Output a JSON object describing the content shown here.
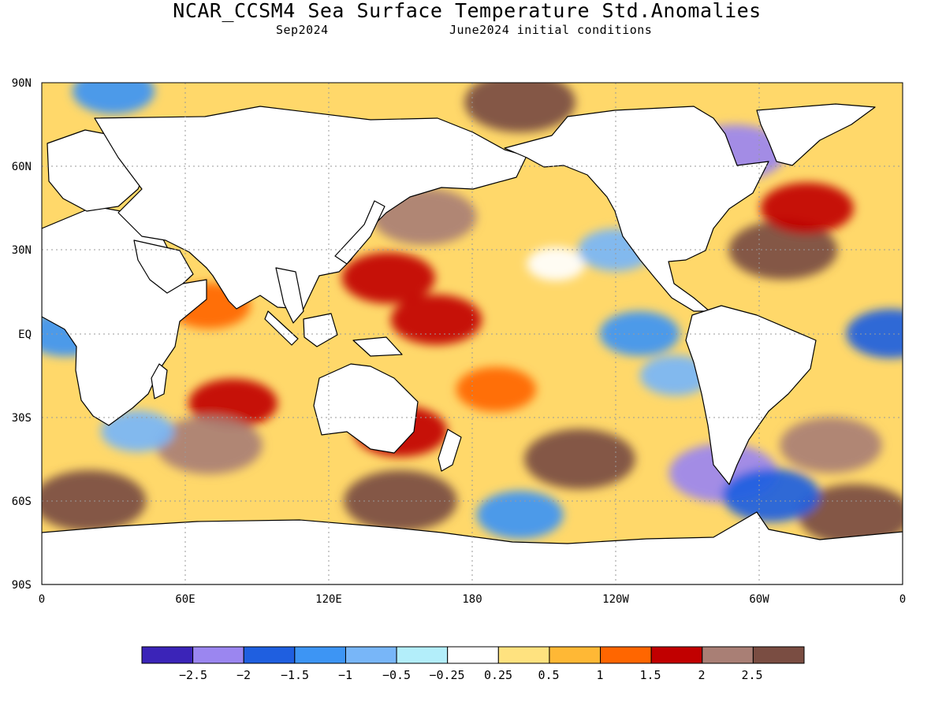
{
  "header": {
    "title": "NCAR_CCSM4 Sea Surface Temperature Std.Anomalies",
    "valid_month": "Sep2024",
    "init_label": "June2024 initial conditions"
  },
  "map": {
    "lat_labels": [
      "90N",
      "60N",
      "30N",
      "EQ",
      "30S",
      "60S",
      "90S"
    ],
    "lon_labels": [
      "0",
      "60E",
      "120E",
      "180",
      "120W",
      "60W",
      "0"
    ],
    "gridlines": true,
    "projection": "equirectangular",
    "extent": {
      "lon": [
        0,
        360
      ],
      "lat": [
        -90,
        90
      ]
    },
    "ocean_fill": "anomaly contours",
    "land_color": "#ffffff"
  },
  "colorbar": {
    "colors": [
      "#3b24b8",
      "#9b86f0",
      "#1f5fe0",
      "#3d95f4",
      "#78b6f8",
      "#b3eefa",
      "#ffffff",
      "#ffe27f",
      "#ffb835",
      "#ff6600",
      "#c10000",
      "#a97f75",
      "#7a4d42"
    ],
    "labels": [
      "−2.5",
      "−2",
      "−1.5",
      "−1",
      "−0.5",
      "−0.25",
      "0.25",
      "0.5",
      "1",
      "1.5",
      "2",
      "2.5"
    ]
  },
  "chart_data": {
    "type": "heatmap",
    "title": "NCAR_CCSM4 Sea Surface Temperature Std.Anomalies",
    "subtitle": "Sep2024   June2024 initial conditions",
    "x_ticks": [
      "0",
      "60E",
      "120E",
      "180",
      "120W",
      "60W",
      "0"
    ],
    "y_ticks": [
      "90N",
      "60N",
      "30N",
      "EQ",
      "30S",
      "60S",
      "90S"
    ],
    "legend_thresholds": [
      -2.5,
      -2,
      -1.5,
      -1,
      -0.5,
      -0.25,
      0.25,
      0.5,
      1,
      1.5,
      2,
      2.5
    ],
    "legend_placement": "bottom",
    "regions": [
      {
        "lon": 160,
        "lat": 42,
        "value": 2.3
      },
      {
        "lon": 200,
        "lat": 83,
        "value": 2.6
      },
      {
        "lon": 145,
        "lat": 20,
        "value": 1.8
      },
      {
        "lon": 165,
        "lat": 5,
        "value": 1.7
      },
      {
        "lon": 70,
        "lat": 10,
        "value": 1.3
      },
      {
        "lon": 80,
        "lat": -25,
        "value": 1.6
      },
      {
        "lon": 70,
        "lat": -40,
        "value": 2.4
      },
      {
        "lon": 20,
        "lat": -60,
        "value": 2.7
      },
      {
        "lon": 150,
        "lat": -35,
        "value": 1.8
      },
      {
        "lon": 190,
        "lat": -20,
        "value": 1.2
      },
      {
        "lon": 225,
        "lat": -45,
        "value": 2.6
      },
      {
        "lon": 150,
        "lat": -60,
        "value": 2.7
      },
      {
        "lon": 310,
        "lat": 30,
        "value": 2.5
      },
      {
        "lon": 320,
        "lat": 45,
        "value": 1.8
      },
      {
        "lon": 330,
        "lat": -40,
        "value": 2.2
      },
      {
        "lon": 340,
        "lat": -65,
        "value": 2.7
      },
      {
        "lon": 215,
        "lat": 25,
        "value": -0.2
      },
      {
        "lon": 240,
        "lat": 30,
        "value": -1.0
      },
      {
        "lon": 250,
        "lat": 0,
        "value": -1.2
      },
      {
        "lon": 265,
        "lat": -15,
        "value": -0.8
      },
      {
        "lon": 285,
        "lat": -50,
        "value": -2.5
      },
      {
        "lon": 305,
        "lat": -58,
        "value": -2.0
      },
      {
        "lon": 355,
        "lat": 0,
        "value": -1.6
      },
      {
        "lon": 290,
        "lat": 65,
        "value": -2.2
      },
      {
        "lon": 30,
        "lat": 87,
        "value": -1.3
      },
      {
        "lon": 10,
        "lat": 0,
        "value": -1.3
      },
      {
        "lon": 40,
        "lat": -35,
        "value": -0.9
      },
      {
        "lon": 200,
        "lat": -65,
        "value": -1.5
      }
    ]
  }
}
